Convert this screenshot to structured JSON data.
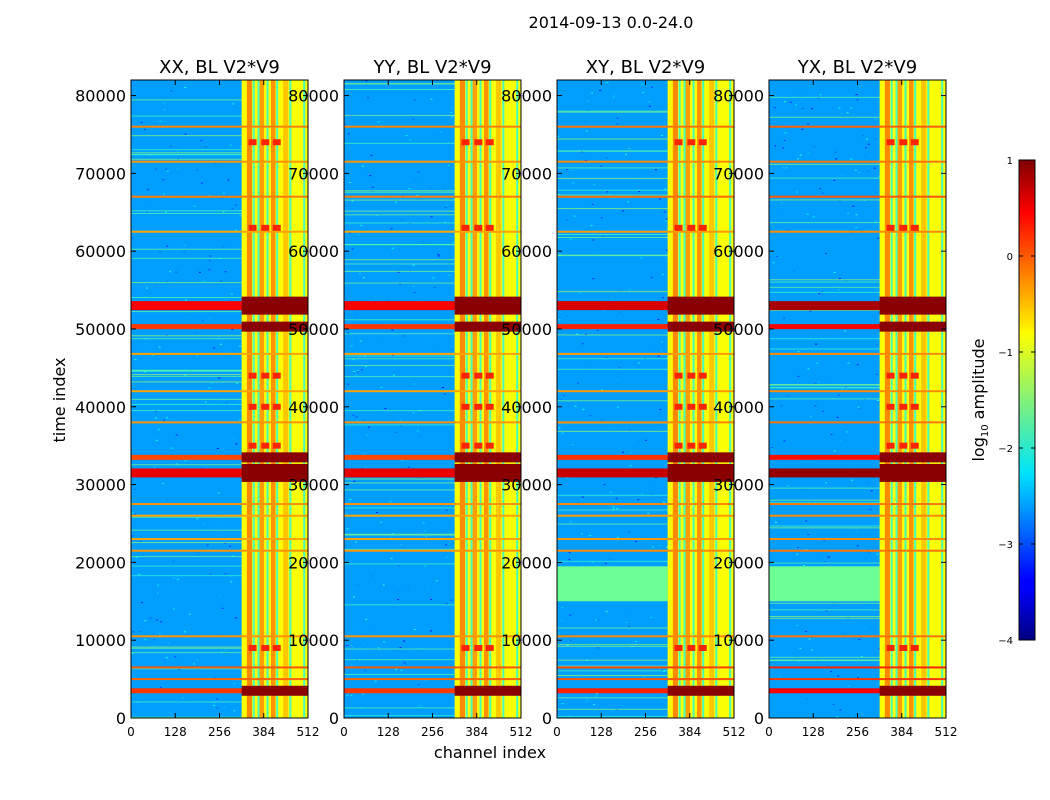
{
  "chart_data": {
    "type": "heatmap",
    "title": "2014-09-13 0.0-24.0",
    "xlabel": "channel index",
    "ylabel": "time index",
    "xlim": [
      0,
      512
    ],
    "ylim": [
      0,
      82000
    ],
    "x_ticks": [
      "0",
      "128",
      "256",
      "384",
      "512"
    ],
    "x_tick_values": [
      0,
      128,
      256,
      384,
      512
    ],
    "y_ticks": [
      "0",
      "10000",
      "20000",
      "30000",
      "40000",
      "50000",
      "60000",
      "70000",
      "80000"
    ],
    "y_tick_values": [
      0,
      10000,
      20000,
      30000,
      40000,
      50000,
      60000,
      70000,
      80000
    ],
    "panels": [
      {
        "id": "xx",
        "title": "XX, BL V2*V9",
        "quiet_band": false,
        "cross_row_strength": 0.75
      },
      {
        "id": "yy",
        "title": "YY, BL V2*V9",
        "quiet_band": false,
        "cross_row_strength": 0.75
      },
      {
        "id": "xy",
        "title": "XY, BL V2*V9",
        "quiet_band": true,
        "cross_row_strength": 0.85
      },
      {
        "id": "yx",
        "title": "YX, BL V2*V9",
        "quiet_band": true,
        "cross_row_strength": 1.0
      }
    ],
    "rfi_columns": [
      {
        "start": 320,
        "end": 512,
        "level": -0.9
      },
      {
        "start": 335,
        "end": 350,
        "level": -0.3
      },
      {
        "start": 372,
        "end": 385,
        "level": -0.4
      },
      {
        "start": 405,
        "end": 418,
        "level": -0.35
      },
      {
        "start": 440,
        "end": 455,
        "level": -0.6
      }
    ],
    "rfi_rows": [
      {
        "time": 76000,
        "level": -0.1
      },
      {
        "time": 71500,
        "level": -0.2
      },
      {
        "time": 67000,
        "level": -0.05
      },
      {
        "time": 62500,
        "level": -0.3
      },
      {
        "time": 53000,
        "level": 0.8
      },
      {
        "time": 50300,
        "level": 0.4
      },
      {
        "time": 46800,
        "level": -0.3
      },
      {
        "time": 42000,
        "level": -0.3
      },
      {
        "time": 38000,
        "level": -0.2
      },
      {
        "time": 33500,
        "level": 0.3
      },
      {
        "time": 31500,
        "level": 0.9
      },
      {
        "time": 27500,
        "level": -0.2
      },
      {
        "time": 26000,
        "level": -0.3
      },
      {
        "time": 23000,
        "level": -0.3
      },
      {
        "time": 21500,
        "level": -0.2
      },
      {
        "time": 10500,
        "level": -0.2
      },
      {
        "time": 6500,
        "level": 0.2
      },
      {
        "time": 5000,
        "level": 0.1
      },
      {
        "time": 3500,
        "level": 0.4
      }
    ],
    "quiet_band_range": [
      15000,
      19500
    ],
    "background_level": -2.6,
    "colorbar": {
      "label": "log10 amplitude",
      "label_main": "log",
      "label_sub": "10",
      "label_rest": " amplitude",
      "range": [
        -4,
        1
      ],
      "ticks": [
        "1",
        "0",
        "−1",
        "−2",
        "−3",
        "−4"
      ],
      "tick_values": [
        1,
        0,
        -1,
        -2,
        -3,
        -4
      ],
      "colormap": "jet"
    }
  }
}
